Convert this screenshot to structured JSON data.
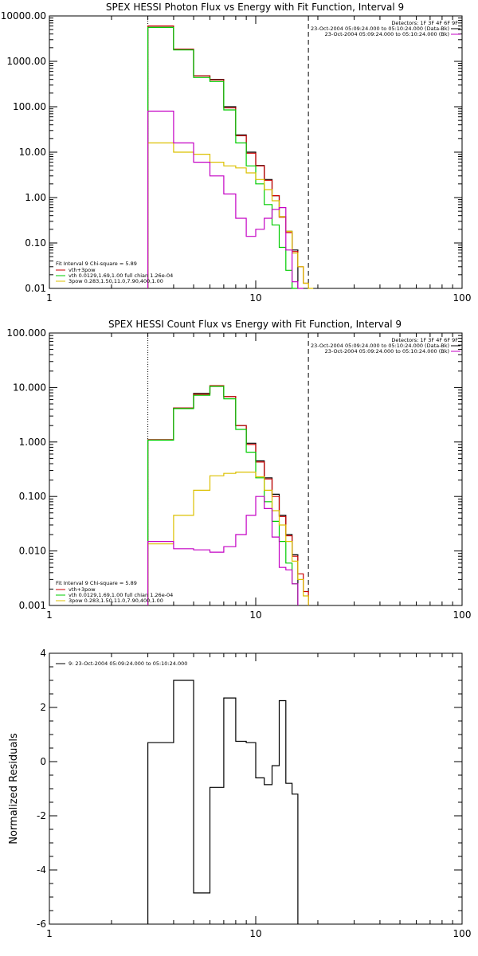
{
  "chart_data": [
    {
      "type": "line",
      "title": "SPEX HESSI Photon Flux vs Energy with Fit Function, Interval 9",
      "xscale": "log",
      "yscale": "log",
      "xlim": [
        1,
        100
      ],
      "ylim": [
        0.01,
        10000
      ],
      "xticks": [
        1,
        10,
        100
      ],
      "xtick_labels": [
        "1",
        "10",
        "100"
      ],
      "yticks": [
        0.01,
        0.1,
        1,
        10,
        100,
        1000,
        10000
      ],
      "ytick_labels": [
        "0.01",
        "0.10",
        "1.00",
        "10.00",
        "100.00",
        "1000.00",
        "10000.00"
      ],
      "vlines": [
        {
          "x": 3,
          "style": "dotted"
        },
        {
          "x": 18,
          "style": "dashed"
        }
      ],
      "info_lines": [
        "Detectors: 1F 3F 4F 6F 9F",
        "23-Oct-2004 05:09:24.000 to 05:10:24.000 (Data-Bk)",
        "23-Oct-2004 05:09:24.000 to 05:10:24.000 (Bk)"
      ],
      "info_swatches": [
        "#000000",
        "#c400c4"
      ],
      "fit_label": "Fit Interval 9   Chi-square = 5.89",
      "legend": [
        {
          "label": "vth+3pow",
          "color": "#cc0000"
        },
        {
          "label": "vth 0.0129,1.69,1.00  full chian 1.26e-04",
          "color": "#00cc00"
        },
        {
          "label": "3pow 0.283,1.50,11.0,7.90,400,1.00",
          "color": "#dcc000"
        }
      ],
      "bin_edges": [
        3,
        4,
        5,
        6,
        7,
        8,
        9,
        10,
        11,
        12,
        13,
        14,
        15,
        16,
        17,
        18,
        19,
        20,
        22
      ],
      "series": [
        {
          "key": "data",
          "color": "#000000",
          "values": [
            6000,
            1850,
            480,
            400,
            100,
            24,
            10,
            5.1,
            2.5,
            1.1,
            0.38,
            0.18,
            0.07,
            null,
            null,
            null,
            null,
            null
          ]
        },
        {
          "key": "total",
          "color": "#cc0000",
          "values": [
            6000,
            1850,
            480,
            390,
            95,
            23,
            9.5,
            5.0,
            2.4,
            1.1,
            0.37,
            0.17,
            0.065,
            0.03,
            0.013,
            null,
            null,
            null
          ]
        },
        {
          "key": "thermal",
          "color": "#00cc00",
          "values": [
            5600,
            1780,
            440,
            360,
            85,
            16,
            5.0,
            2.0,
            0.7,
            0.25,
            0.08,
            0.025,
            0.008,
            null,
            null,
            null,
            null,
            null
          ]
        },
        {
          "key": "powerlaw",
          "color": "#dcc000",
          "values": [
            16,
            10,
            9,
            6,
            5,
            4.5,
            3.5,
            2.5,
            1.5,
            0.85,
            0.38,
            0.18,
            0.06,
            0.03,
            0.013,
            0.005,
            null,
            null
          ]
        },
        {
          "key": "background",
          "color": "#c400c4",
          "values": [
            80,
            16,
            6,
            3,
            1.2,
            0.35,
            0.14,
            0.2,
            0.35,
            0.55,
            0.6,
            0.07,
            0.014,
            0.005,
            null,
            null,
            null,
            null
          ]
        }
      ]
    },
    {
      "type": "line",
      "title": "SPEX HESSI Count Flux vs Energy with Fit Function, Interval 9",
      "xscale": "log",
      "yscale": "log",
      "xlim": [
        1,
        100
      ],
      "ylim": [
        0.001,
        100
      ],
      "xticks": [
        1,
        10,
        100
      ],
      "xtick_labels": [
        "1",
        "10",
        "100"
      ],
      "yticks": [
        0.001,
        0.01,
        0.1,
        1,
        10,
        100
      ],
      "ytick_labels": [
        "0.001",
        "0.010",
        "0.100",
        "1.000",
        "10.000",
        "100.000"
      ],
      "vlines": [
        {
          "x": 3,
          "style": "dotted"
        },
        {
          "x": 18,
          "style": "dashed"
        }
      ],
      "info_lines": [
        "Detectors: 1F 3F 4F 6F 9F",
        "23-Oct-2004 05:09:24.000 to 05:10:24.000 (Data-Bk)",
        "23-Oct-2004 05:09:24.000 to 05:10:24.000 (Bk)"
      ],
      "info_swatches": [
        "#000000",
        "#c400c4"
      ],
      "fit_label": "Fit Interval 9   Chi-square = 5.89",
      "legend": [
        {
          "label": "vth+3pow",
          "color": "#cc0000"
        },
        {
          "label": "vth 0.0129,1.69,1.00  full chian 1.26e-04",
          "color": "#00cc00"
        },
        {
          "label": "3pow 0.283,1.50,11.0,7.90,400,1.00",
          "color": "#dcc000"
        }
      ],
      "bin_edges": [
        3,
        4,
        5,
        6,
        7,
        8,
        9,
        10,
        11,
        12,
        13,
        14,
        15,
        16,
        17,
        18,
        19,
        20,
        22
      ],
      "series": [
        {
          "key": "data",
          "color": "#000000",
          "values": [
            1.1,
            4.2,
            7.8,
            10.8,
            6.8,
            2.0,
            0.95,
            0.45,
            0.22,
            0.11,
            0.045,
            0.02,
            0.0085,
            null,
            null,
            null,
            null,
            null
          ]
        },
        {
          "key": "total",
          "color": "#cc0000",
          "values": [
            1.1,
            4.2,
            7.5,
            10.8,
            6.8,
            2.0,
            0.9,
            0.43,
            0.21,
            0.1,
            0.043,
            0.019,
            0.008,
            0.0038,
            0.0018,
            null,
            null,
            null
          ]
        },
        {
          "key": "thermal",
          "color": "#00cc00",
          "values": [
            1.08,
            4.1,
            7.2,
            10.5,
            6.2,
            1.7,
            0.65,
            0.22,
            0.08,
            0.035,
            0.015,
            0.006,
            0.0025,
            null,
            null,
            null,
            null,
            null
          ]
        },
        {
          "key": "powerlaw",
          "color": "#dcc000",
          "values": [
            0.0135,
            0.045,
            0.13,
            0.24,
            0.265,
            0.28,
            0.28,
            0.23,
            0.13,
            0.055,
            0.03,
            0.015,
            0.0065,
            0.003,
            0.0015,
            null,
            null,
            null
          ]
        },
        {
          "key": "background",
          "color": "#c400c4",
          "values": [
            0.015,
            0.011,
            0.0105,
            0.0095,
            0.012,
            0.02,
            0.045,
            0.1,
            0.06,
            0.018,
            0.005,
            0.0045,
            0.0025,
            null,
            null,
            null,
            null,
            null
          ]
        }
      ]
    },
    {
      "type": "line",
      "title": "",
      "ylabel": "Normalized Residuals",
      "xscale": "log",
      "xlim": [
        1,
        100
      ],
      "ylim": [
        -6,
        4
      ],
      "xticks": [
        1,
        10,
        100
      ],
      "xtick_labels": [
        "1",
        "10",
        "100"
      ],
      "yticks": [
        -6,
        -4,
        -2,
        0,
        2,
        4
      ],
      "ytick_labels": [
        "-6",
        "-4",
        "-2",
        "0",
        "2",
        "4"
      ],
      "legend": [
        {
          "label": "9: 23-Oct-2004 05:09:24.000 to 05:10:24.000",
          "color": "#000000"
        }
      ],
      "bin_edges": [
        3,
        4,
        5,
        6,
        7,
        8,
        9,
        10,
        11,
        12,
        13,
        14,
        15,
        16,
        17,
        18
      ],
      "series": [
        {
          "key": "residuals",
          "color": "#000000",
          "values": [
            0.7,
            3.0,
            -4.85,
            -0.95,
            2.35,
            0.75,
            0.7,
            -0.6,
            -0.85,
            -0.15,
            2.25,
            -0.8,
            -1.2,
            null,
            null
          ]
        }
      ]
    }
  ]
}
